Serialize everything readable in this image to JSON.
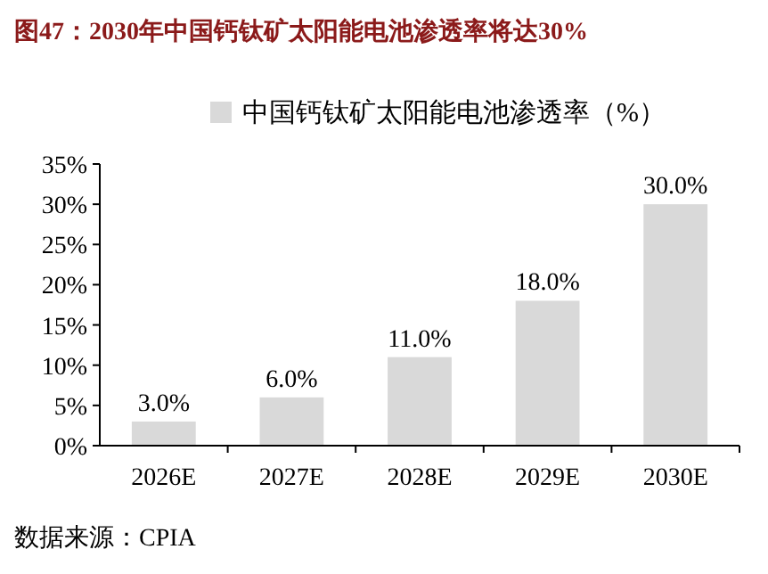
{
  "chart_data": {
    "type": "bar",
    "title": "图47：2030年中国钙钛矿太阳能电池渗透率将达30%",
    "categories": [
      "2026E",
      "2027E",
      "2028E",
      "2029E",
      "2030E"
    ],
    "series": [
      {
        "name": "中国钙钛矿太阳能电池渗透率（%）",
        "color": "#d9d9d9",
        "values": [
          3.0,
          6.0,
          11.0,
          18.0,
          30.0
        ],
        "value_labels": [
          "3.0%",
          "6.0%",
          "11.0%",
          "18.0%",
          "30.0%"
        ]
      }
    ],
    "ylim": [
      0,
      35
    ],
    "yticks": [
      {
        "value": 0,
        "label": "0%"
      },
      {
        "value": 5,
        "label": "5%"
      },
      {
        "value": 10,
        "label": "10%"
      },
      {
        "value": 15,
        "label": "15%"
      },
      {
        "value": 20,
        "label": "20%"
      },
      {
        "value": 25,
        "label": "25%"
      },
      {
        "value": 30,
        "label": "30%"
      },
      {
        "value": 35,
        "label": "35%"
      }
    ],
    "grid": false,
    "legend": "top",
    "annotations": [
      "数据来源：CPIA"
    ]
  }
}
